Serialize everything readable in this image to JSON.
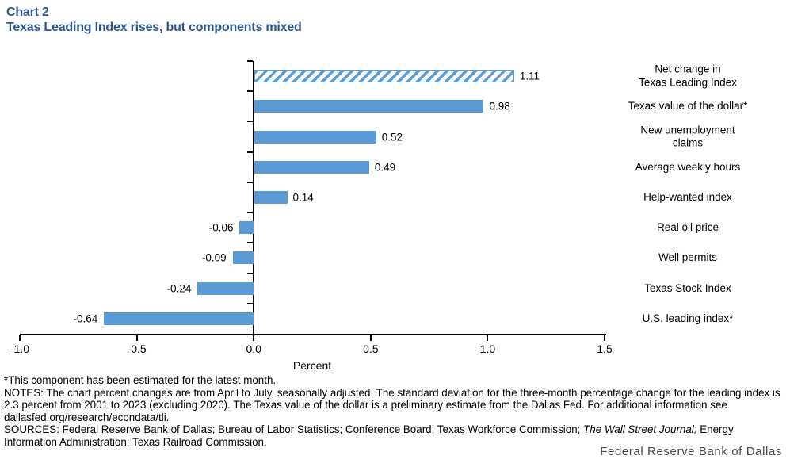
{
  "title": {
    "line1": "Chart 2",
    "line2": "Texas Leading Index rises, but components mixed"
  },
  "chart_data": {
    "type": "bar",
    "orientation": "horizontal",
    "title": "Texas Leading Index rises, but components mixed",
    "xlabel": "Percent",
    "xlim": [
      -1.0,
      1.5
    ],
    "xticks": [
      -1.0,
      -0.5,
      0.0,
      0.5,
      1.0,
      1.5
    ],
    "xtick_labels": [
      "-1.0",
      "-0.5",
      "0.0",
      "0.5",
      "1.0",
      "1.5"
    ],
    "bar_color": "#5b9bd5",
    "grid": "off",
    "category_labels_position": "right",
    "series": [
      {
        "label": [
          "Net change in",
          "Texas Leading Index"
        ],
        "value": 1.11,
        "value_label": "1.11",
        "hatched": true
      },
      {
        "label": [
          "Texas value of the dollar*"
        ],
        "value": 0.98,
        "value_label": "0.98",
        "hatched": false
      },
      {
        "label": [
          "New unemployment",
          "claims"
        ],
        "value": 0.52,
        "value_label": "0.52",
        "hatched": false
      },
      {
        "label": [
          "Average weekly hours"
        ],
        "value": 0.49,
        "value_label": "0.49",
        "hatched": false
      },
      {
        "label": [
          "Help-wanted index"
        ],
        "value": 0.14,
        "value_label": "0.14",
        "hatched": false
      },
      {
        "label": [
          "Real oil price"
        ],
        "value": -0.06,
        "value_label": "-0.06",
        "hatched": false
      },
      {
        "label": [
          "Well permits"
        ],
        "value": -0.09,
        "value_label": "-0.09",
        "hatched": false
      },
      {
        "label": [
          "Texas Stock Index"
        ],
        "value": -0.24,
        "value_label": "-0.24",
        "hatched": false
      },
      {
        "label": [
          "U.S. leading index*"
        ],
        "value": -0.64,
        "value_label": "-0.64",
        "hatched": false
      }
    ]
  },
  "footnotes": {
    "asterisk": "*This component has been estimated for the latest month.",
    "notes": "NOTES: The chart percent changes are from April to July, seasonally adjusted. The standard deviation for the three-month percentage change for the leading index is 2.3 percent from 2001 to 2023 (excluding 2020). The Texas value of the dollar is a preliminary estimate from the Dallas Fed. For additional information see dallasfed.org/research/econdata/tli.",
    "sources_pre": "SOURCES: Federal Reserve Bank of Dallas; Bureau of Labor Statistics; Conference Board; Texas Workforce Commission; ",
    "sources_italic": "The Wall Street Journal;",
    "sources_post": " Energy Information Administration; Texas Railroad Commission."
  },
  "branding": "Federal Reserve Bank of Dallas"
}
